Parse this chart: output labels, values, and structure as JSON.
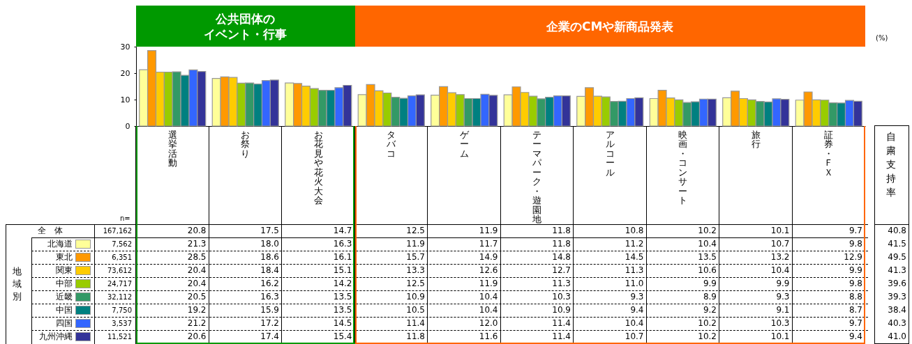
{
  "chart_data": {
    "type": "bar",
    "categories": [
      "選挙活動",
      "お祭り",
      "お花見や花火大会",
      "タバコ",
      "ゲーム",
      "テーマパーク・遊園地",
      "アルコール",
      "映画・コンサート",
      "旅行",
      "証券・ＦＸ"
    ],
    "series": [
      {
        "name": "北海道",
        "color": "#ffff99",
        "values": [
          21.3,
          18.0,
          16.3,
          11.9,
          11.7,
          11.8,
          11.2,
          10.4,
          10.7,
          9.8
        ],
        "value_labels": [
          "21.3",
          "18.0",
          "16.3",
          "11.9",
          "11.7",
          "11.8",
          "11.2",
          "10.4",
          "10.7",
          "9.8"
        ]
      },
      {
        "name": "東北",
        "color": "#ff9900",
        "values": [
          28.5,
          18.6,
          16.1,
          15.7,
          14.9,
          14.8,
          14.5,
          13.5,
          13.2,
          12.9
        ],
        "value_labels": [
          "28.5",
          "18.6",
          "16.1",
          "15.7",
          "14.9",
          "14.8",
          "14.5",
          "13.5",
          "13.2",
          "12.9"
        ]
      },
      {
        "name": "関東",
        "color": "#ffcc00",
        "values": [
          20.4,
          18.4,
          15.1,
          13.3,
          12.6,
          12.7,
          11.3,
          10.6,
          10.4,
          9.9
        ],
        "value_labels": [
          "20.4",
          "18.4",
          "15.1",
          "13.3",
          "12.6",
          "12.7",
          "11.3",
          "10.6",
          "10.4",
          "9.9"
        ]
      },
      {
        "name": "中部",
        "color": "#99cc00",
        "values": [
          20.4,
          16.2,
          14.2,
          12.5,
          11.9,
          11.3,
          11.0,
          9.9,
          9.9,
          9.8
        ],
        "value_labels": [
          "20.4",
          "16.2",
          "14.2",
          "12.5",
          "11.9",
          "11.3",
          "11.0",
          "9.9",
          "9.9",
          "9.8"
        ]
      },
      {
        "name": "近畿",
        "color": "#339966",
        "values": [
          20.5,
          16.3,
          13.5,
          10.9,
          10.4,
          10.3,
          9.3,
          8.9,
          9.3,
          8.8
        ],
        "value_labels": [
          "20.5",
          "16.3",
          "13.5",
          "10.9",
          "10.4",
          "10.3",
          "9.3",
          "8.9",
          "9.3",
          "8.8"
        ]
      },
      {
        "name": "中国",
        "color": "#008080",
        "values": [
          19.2,
          15.9,
          13.5,
          10.5,
          10.4,
          10.9,
          9.4,
          9.2,
          9.1,
          8.7
        ],
        "value_labels": [
          "19.2",
          "15.9",
          "13.5",
          "10.5",
          "10.4",
          "10.9",
          "9.4",
          "9.2",
          "9.1",
          "8.7"
        ]
      },
      {
        "name": "四国",
        "color": "#3366ff",
        "values": [
          21.2,
          17.2,
          14.5,
          11.4,
          12.0,
          11.4,
          10.4,
          10.2,
          10.3,
          9.7
        ],
        "value_labels": [
          "21.2",
          "17.2",
          "14.5",
          "11.4",
          "12.0",
          "11.4",
          "10.4",
          "10.2",
          "10.3",
          "9.7"
        ]
      },
      {
        "name": "九州沖縄",
        "color": "#333399",
        "values": [
          20.6,
          17.4,
          15.4,
          11.8,
          11.6,
          11.4,
          10.7,
          10.2,
          10.1,
          9.4
        ],
        "value_labels": [
          "20.6",
          "17.4",
          "15.4",
          "11.8",
          "11.6",
          "11.4",
          "10.7",
          "10.2",
          "10.1",
          "9.4"
        ]
      }
    ],
    "ylim": [
      0,
      30
    ],
    "yticks": [
      0,
      10,
      20,
      30
    ],
    "legend": "left",
    "annotations": [
      "(%)",
      "n=",
      "地域別",
      "自粛支持率",
      "公共団体の",
      "イベント・行事",
      "企業のCMや新商品発表",
      "全　体",
      "167,162",
      "20.8",
      "17.5",
      "14.7",
      "12.5",
      "11.9",
      "11.8",
      "10.8",
      "10.2",
      "10.1",
      "9.7",
      "40.8",
      "7,562",
      "6,351",
      "73,612",
      "24,717",
      "32,112",
      "7,750",
      "3,537",
      "11,521",
      "41.5",
      "49.5",
      "41.3",
      "39.6",
      "39.3",
      "38.4",
      "40.3",
      "41.0"
    ]
  }
}
